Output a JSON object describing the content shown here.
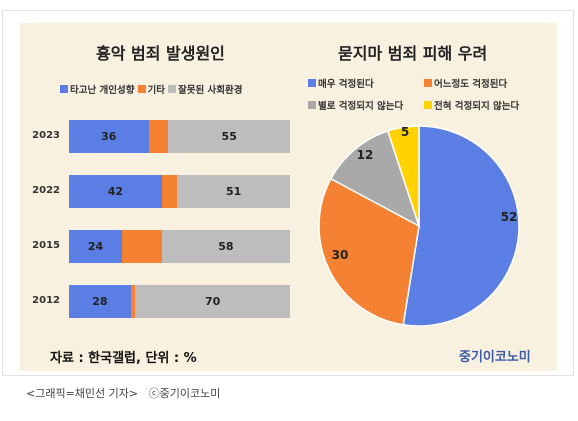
{
  "left_chart": {
    "title": "흉악 범죄 발생원인",
    "legend": [
      {
        "label": "타고난 개인성향",
        "color": "#5b7ee5"
      },
      {
        "label": "기타",
        "color": "#f58232"
      },
      {
        "label": "잘못된 사회환경",
        "color": "#bdbdbd"
      }
    ]
  },
  "right_chart": {
    "title": "묻지마 범죄 피해 우려",
    "legend": [
      {
        "label": "매우 걱정된다",
        "color": "#5b7ee5"
      },
      {
        "label": "어느정도 걱정된다",
        "color": "#f58232"
      },
      {
        "label": "별로 걱정되지 않는다",
        "color": "#a9a9a9"
      },
      {
        "label": "전혀 걱정되지 않는다",
        "color": "#ffd200"
      }
    ]
  },
  "chart_data": [
    {
      "type": "bar",
      "orientation": "horizontal",
      "stacked": true,
      "title": "흉악 범죄 발생원인",
      "categories": [
        "2023",
        "2022",
        "2015",
        "2012"
      ],
      "series": [
        {
          "name": "타고난 개인성향",
          "values": [
            36,
            42,
            24,
            28
          ],
          "labels": [
            "36",
            "42",
            "24",
            "28"
          ]
        },
        {
          "name": "기타",
          "values": [
            9,
            7,
            18,
            2
          ],
          "labels": [
            "",
            "",
            "",
            ""
          ]
        },
        {
          "name": "잘못된 사회환경",
          "values": [
            55,
            51,
            58,
            70
          ],
          "labels": [
            "55",
            "51",
            "58",
            "70"
          ]
        }
      ],
      "xlim": [
        0,
        100
      ],
      "legend": "top"
    },
    {
      "type": "pie",
      "title": "묻지마 범죄 피해 우려",
      "categories": [
        "매우 걱정된다",
        "어느정도 걱정된다",
        "별로 걱정되지 않는다",
        "전혀 걱정되지 않는다"
      ],
      "values": [
        52,
        30,
        12,
        5
      ],
      "labels": [
        "52",
        "30",
        "12",
        "5"
      ],
      "legend": "top"
    }
  ],
  "footer": {
    "source": "자료 : 한국갤럽, 단위 : %",
    "brand": "중기이코노미",
    "caption": "<그래픽=채민선 기자>   ⓒ중기이코노미"
  }
}
